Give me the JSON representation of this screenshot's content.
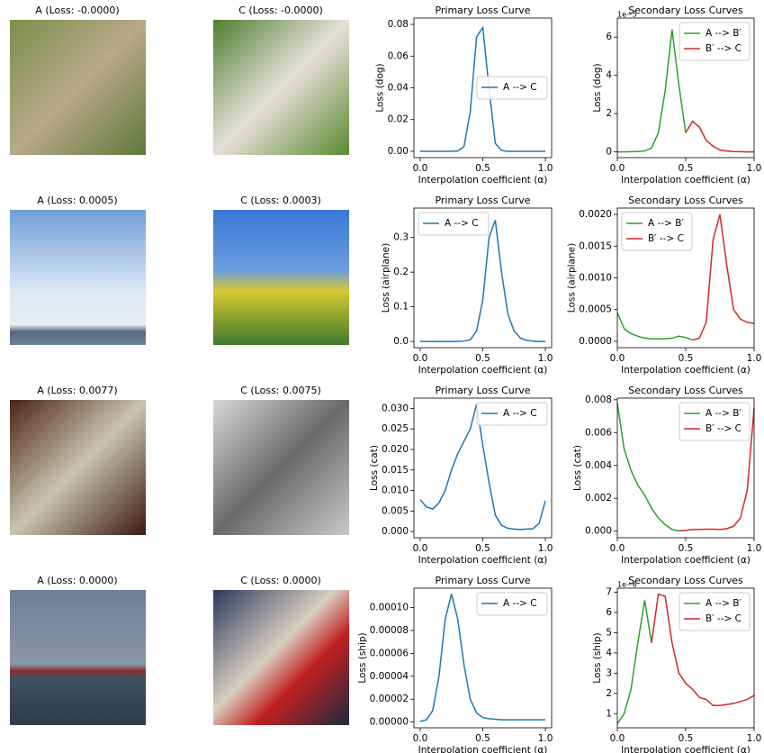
{
  "images": [
    {
      "title": "A (Loss: -0.0000)"
    },
    {
      "title": "C (Loss: -0.0000)"
    },
    {
      "title": "A (Loss: 0.0005)"
    },
    {
      "title": "C (Loss: 0.0003)"
    },
    {
      "title": "A (Loss: 0.0077)"
    },
    {
      "title": "C (Loss: 0.0075)"
    },
    {
      "title": "A (Loss: 0.0000)"
    },
    {
      "title": "C (Loss: 0.0000)"
    }
  ],
  "chart_data": [
    {
      "type": "line",
      "title": "Primary Loss Curve",
      "xlabel": "Interpolation coefficient (α)",
      "ylabel": "Loss (dog)",
      "legend": "center right",
      "x": [
        0,
        0.05,
        0.1,
        0.15,
        0.2,
        0.25,
        0.3,
        0.35,
        0.4,
        0.45,
        0.5,
        0.55,
        0.6,
        0.65,
        0.7,
        0.75,
        0.8,
        0.85,
        0.9,
        0.95,
        1
      ],
      "xlim": [
        -0.05,
        1.05
      ],
      "xticks": [
        {
          "value": 0,
          "label": "0.0"
        },
        {
          "value": 0.5,
          "label": "0.5"
        },
        {
          "value": 1,
          "label": "1.0"
        }
      ],
      "ylim": [
        -0.004,
        0.084
      ],
      "yticks": [
        {
          "value": 0,
          "label": "0.00"
        },
        {
          "value": 0.02,
          "label": "0.02"
        },
        {
          "value": 0.04,
          "label": "0.04"
        },
        {
          "value": 0.06,
          "label": "0.06"
        },
        {
          "value": 0.08,
          "label": "0.08"
        }
      ],
      "series": [
        {
          "name": "A --> C",
          "color": "#1f77b4",
          "values": [
            0,
            0,
            0,
            0,
            0,
            0,
            0.0002,
            0.003,
            0.025,
            0.072,
            0.078,
            0.04,
            0.005,
            0.0005,
            0,
            0,
            0,
            0,
            0,
            0,
            0
          ]
        }
      ]
    },
    {
      "type": "line",
      "title": "Secondary Loss Curves",
      "xlabel": "Interpolation coefficient (α)",
      "ylabel": "Loss (dog)",
      "legend": "upper right",
      "y_offset_label": "1e−5",
      "x": [
        0,
        0.05,
        0.1,
        0.15,
        0.2,
        0.25,
        0.3,
        0.35,
        0.4,
        0.45,
        0.5,
        0.55,
        0.6,
        0.65,
        0.7,
        0.75,
        0.8,
        0.85,
        0.9,
        0.95,
        1
      ],
      "xlim": [
        0,
        1
      ],
      "xticks": [
        {
          "value": 0,
          "label": "0.0"
        },
        {
          "value": 0.5,
          "label": "0.5"
        },
        {
          "value": 1,
          "label": "1.0"
        }
      ],
      "ylim": [
        -0.3,
        7
      ],
      "yticks": [
        0,
        2,
        4,
        6
      ],
      "series": [
        {
          "name": "A --> B′",
          "color": "#2ca02c",
          "values": [
            0,
            0,
            0.01,
            0.02,
            0.05,
            0.2,
            1.0,
            3.2,
            6.4,
            3.5,
            1.0,
            null,
            null,
            null,
            null,
            null,
            null,
            null,
            null,
            null,
            null
          ]
        },
        {
          "name": "B′ --> C",
          "color": "#d62728",
          "values": [
            null,
            null,
            null,
            null,
            null,
            null,
            null,
            null,
            null,
            null,
            1.0,
            1.6,
            1.3,
            0.6,
            0.3,
            0.1,
            0.05,
            0.02,
            0.01,
            0,
            0
          ]
        }
      ]
    },
    {
      "type": "line",
      "title": "Primary Loss Curve",
      "xlabel": "Interpolation coefficient (α)",
      "ylabel": "Loss (airplane)",
      "legend": "upper left",
      "x": [
        0,
        0.05,
        0.1,
        0.15,
        0.2,
        0.25,
        0.3,
        0.35,
        0.4,
        0.45,
        0.5,
        0.55,
        0.6,
        0.65,
        0.7,
        0.75,
        0.8,
        0.85,
        0.9,
        0.95,
        1
      ],
      "xlim": [
        -0.05,
        1.05
      ],
      "xticks": [
        {
          "value": 0,
          "label": "0.0"
        },
        {
          "value": 0.5,
          "label": "0.5"
        },
        {
          "value": 1,
          "label": "1.0"
        }
      ],
      "ylim": [
        -0.018,
        0.385
      ],
      "yticks": [
        {
          "value": 0,
          "label": "0.0"
        },
        {
          "value": 0.1,
          "label": "0.1"
        },
        {
          "value": 0.2,
          "label": "0.2"
        },
        {
          "value": 0.3,
          "label": "0.3"
        }
      ],
      "series": [
        {
          "name": "A --> C",
          "color": "#1f77b4",
          "values": [
            0,
            0,
            0,
            0,
            0,
            0,
            0,
            0.001,
            0.005,
            0.03,
            0.12,
            0.3,
            0.35,
            0.2,
            0.08,
            0.03,
            0.01,
            0.003,
            0.001,
            0,
            0
          ]
        }
      ]
    },
    {
      "type": "line",
      "title": "Secondary Loss Curves",
      "xlabel": "Interpolation coefficient (α)",
      "ylabel": "Loss (airplane)",
      "legend": "upper left",
      "x": [
        0,
        0.05,
        0.1,
        0.15,
        0.2,
        0.25,
        0.3,
        0.35,
        0.4,
        0.45,
        0.5,
        0.55,
        0.6,
        0.65,
        0.7,
        0.75,
        0.8,
        0.85,
        0.9,
        0.95,
        1
      ],
      "xlim": [
        0,
        1
      ],
      "xticks": [
        {
          "value": 0,
          "label": "0.0"
        },
        {
          "value": 0.5,
          "label": "0.5"
        },
        {
          "value": 1,
          "label": "1.0"
        }
      ],
      "ylim": [
        -0.0001,
        0.0021
      ],
      "yticks": [
        {
          "value": 0,
          "label": "0.0000"
        },
        {
          "value": 0.0005,
          "label": "0.0005"
        },
        {
          "value": 0.001,
          "label": "0.0010"
        },
        {
          "value": 0.0015,
          "label": "0.0015"
        },
        {
          "value": 0.002,
          "label": "0.0020"
        }
      ],
      "series": [
        {
          "name": "A --> B′",
          "color": "#2ca02c",
          "values": [
            0.00045,
            0.0002,
            0.00012,
            8e-05,
            5e-05,
            4e-05,
            4e-05,
            4e-05,
            5e-05,
            8e-05,
            6e-05,
            2e-05,
            null,
            null,
            null,
            null,
            null,
            null,
            null,
            null,
            null
          ]
        },
        {
          "name": "B′ --> C",
          "color": "#d62728",
          "values": [
            null,
            null,
            null,
            null,
            null,
            null,
            null,
            null,
            null,
            null,
            null,
            2e-05,
            5e-05,
            0.0003,
            0.0016,
            0.002,
            0.0012,
            0.0005,
            0.00035,
            0.0003,
            0.00028
          ]
        }
      ]
    },
    {
      "type": "line",
      "title": "Primary Loss Curve",
      "xlabel": "Interpolation coefficient (α)",
      "ylabel": "Loss (cat)",
      "legend": "upper right",
      "x": [
        0,
        0.05,
        0.1,
        0.15,
        0.2,
        0.25,
        0.3,
        0.35,
        0.4,
        0.45,
        0.5,
        0.55,
        0.6,
        0.65,
        0.7,
        0.75,
        0.8,
        0.85,
        0.9,
        0.95,
        1
      ],
      "xlim": [
        -0.05,
        1.05
      ],
      "xticks": [
        {
          "value": 0,
          "label": "0.0"
        },
        {
          "value": 0.5,
          "label": "0.5"
        },
        {
          "value": 1,
          "label": "1.0"
        }
      ],
      "ylim": [
        -0.0015,
        0.0325
      ],
      "yticks": [
        {
          "value": 0,
          "label": "0.000"
        },
        {
          "value": 0.005,
          "label": "0.005"
        },
        {
          "value": 0.01,
          "label": "0.010"
        },
        {
          "value": 0.015,
          "label": "0.015"
        },
        {
          "value": 0.02,
          "label": "0.020"
        },
        {
          "value": 0.025,
          "label": "0.025"
        },
        {
          "value": 0.03,
          "label": "0.030"
        }
      ],
      "series": [
        {
          "name": "A --> C",
          "color": "#1f77b4",
          "values": [
            0.0078,
            0.006,
            0.0055,
            0.007,
            0.01,
            0.015,
            0.019,
            0.022,
            0.025,
            0.031,
            0.021,
            0.012,
            0.004,
            0.0015,
            0.0008,
            0.0006,
            0.0005,
            0.0006,
            0.0007,
            0.002,
            0.0075
          ]
        }
      ]
    },
    {
      "type": "line",
      "title": "Secondary Loss Curves",
      "xlabel": "Interpolation coefficient (α)",
      "ylabel": "Loss (cat)",
      "legend": "upper right",
      "x": [
        0,
        0.05,
        0.1,
        0.15,
        0.2,
        0.25,
        0.3,
        0.35,
        0.4,
        0.45,
        0.5,
        0.55,
        0.6,
        0.65,
        0.7,
        0.75,
        0.8,
        0.85,
        0.9,
        0.95,
        1
      ],
      "xlim": [
        0,
        1
      ],
      "xticks": [
        {
          "value": 0,
          "label": "0.0"
        },
        {
          "value": 0.5,
          "label": "0.5"
        },
        {
          "value": 1,
          "label": "1.0"
        }
      ],
      "ylim": [
        -0.0004,
        0.0081
      ],
      "yticks": [
        {
          "value": 0,
          "label": "0.000"
        },
        {
          "value": 0.002,
          "label": "0.002"
        },
        {
          "value": 0.004,
          "label": "0.004"
        },
        {
          "value": 0.006,
          "label": "0.006"
        },
        {
          "value": 0.008,
          "label": "0.008"
        }
      ],
      "series": [
        {
          "name": "A --> B′",
          "color": "#2ca02c",
          "values": [
            0.0078,
            0.005,
            0.0037,
            0.0028,
            0.0022,
            0.0014,
            0.0008,
            0.0004,
            0.0001,
            2e-05,
            null,
            null,
            null,
            null,
            null,
            null,
            null,
            null,
            null,
            null,
            null
          ]
        },
        {
          "name": "B′ --> C",
          "color": "#d62728",
          "values": [
            null,
            null,
            null,
            null,
            null,
            null,
            null,
            null,
            null,
            2e-05,
            5e-05,
            0.0001,
            0.0001,
            0.00012,
            0.00012,
            0.0001,
            0.00015,
            0.0003,
            0.0008,
            0.0025,
            0.0075
          ]
        }
      ]
    },
    {
      "type": "line",
      "title": "Primary Loss Curve",
      "xlabel": "Interpolation coefficient (α)",
      "ylabel": "Loss (ship)",
      "legend": "upper right",
      "x": [
        0,
        0.05,
        0.1,
        0.15,
        0.2,
        0.25,
        0.3,
        0.35,
        0.4,
        0.45,
        0.5,
        0.55,
        0.6,
        0.65,
        0.7,
        0.75,
        0.8,
        0.85,
        0.9,
        0.95,
        1
      ],
      "xlim": [
        -0.05,
        1.05
      ],
      "xticks": [
        {
          "value": 0,
          "label": "0.0"
        },
        {
          "value": 0.5,
          "label": "0.5"
        },
        {
          "value": 1,
          "label": "1.0"
        }
      ],
      "ylim": [
        -5e-06,
        0.000117
      ],
      "yticks": [
        {
          "value": 0,
          "label": "0.00000"
        },
        {
          "value": 2e-05,
          "label": "0.00002"
        },
        {
          "value": 4e-05,
          "label": "0.00004"
        },
        {
          "value": 6e-05,
          "label": "0.00006"
        },
        {
          "value": 8e-05,
          "label": "0.00008"
        },
        {
          "value": 0.0001,
          "label": "0.00010"
        }
      ],
      "series": [
        {
          "name": "A --> C",
          "color": "#1f77b4",
          "values": [
            5e-07,
            2e-06,
            1e-05,
            4e-05,
            9e-05,
            0.000112,
            9e-05,
            5e-05,
            2e-05,
            8e-06,
            4e-06,
            3e-06,
            2.5e-06,
            2e-06,
            2e-06,
            2e-06,
            2e-06,
            2e-06,
            2e-06,
            2e-06,
            2e-06
          ]
        }
      ]
    },
    {
      "type": "line",
      "title": "Secondary Loss Curves",
      "xlabel": "Interpolation coefficient (α)",
      "ylabel": "Loss (ship)",
      "legend": "upper right",
      "y_offset_label": "1e−6",
      "x": [
        0,
        0.05,
        0.1,
        0.15,
        0.2,
        0.25,
        0.3,
        0.35,
        0.4,
        0.45,
        0.5,
        0.55,
        0.6,
        0.65,
        0.7,
        0.75,
        0.8,
        0.85,
        0.9,
        0.95,
        1
      ],
      "xlim": [
        0,
        1
      ],
      "xticks": [
        {
          "value": 0,
          "label": "0.0"
        },
        {
          "value": 0.5,
          "label": "0.5"
        },
        {
          "value": 1,
          "label": "1.0"
        }
      ],
      "ylim": [
        0.3,
        7.2
      ],
      "yticks": [
        1,
        2,
        3,
        4,
        5,
        6,
        7
      ],
      "series": [
        {
          "name": "A --> B′",
          "color": "#2ca02c",
          "values": [
            0.5,
            1.0,
            2.2,
            4.5,
            6.6,
            4.5,
            null,
            null,
            null,
            null,
            null,
            null,
            null,
            null,
            null,
            null,
            null,
            null,
            null,
            null,
            null
          ]
        },
        {
          "name": "B′ --> C",
          "color": "#d62728",
          "values": [
            null,
            null,
            null,
            null,
            null,
            4.5,
            6.9,
            6.8,
            4.5,
            3.0,
            2.5,
            2.2,
            1.8,
            1.7,
            1.4,
            1.4,
            1.45,
            1.5,
            1.6,
            1.7,
            1.9
          ]
        }
      ]
    }
  ]
}
